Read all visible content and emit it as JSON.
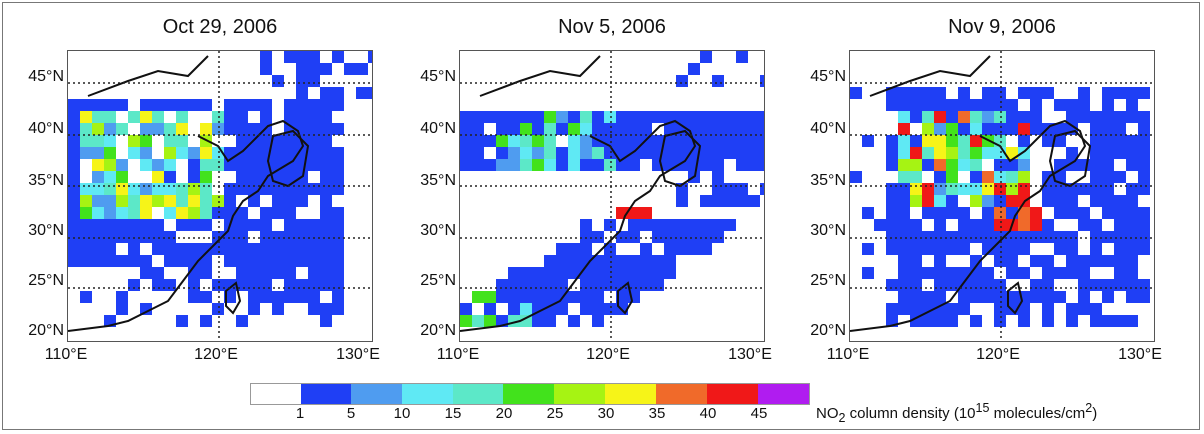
{
  "panels": [
    {
      "title": "Oct 29, 2006"
    },
    {
      "title": "Nov 5, 2006"
    },
    {
      "title": "Nov 9, 2006"
    }
  ],
  "y_labels": [
    "45°N",
    "40°N",
    "35°N",
    "30°N",
    "25°N",
    "20°N"
  ],
  "x_labels": [
    "110°E",
    "120°E",
    "130°E"
  ],
  "legend": {
    "ticks": [
      "1",
      "5",
      "10",
      "15",
      "20",
      "25",
      "30",
      "35",
      "40",
      "45"
    ],
    "caption": "NO2 column density (1015 molecules/cm2)",
    "caption_parts": {
      "pre": "NO",
      "sub": "2",
      "mid": " column density (10",
      "sup": "15",
      "post": " molecules/cm",
      "sup2": "2",
      "end": ")"
    },
    "colors": [
      "#ffffff",
      "#1f3ff5",
      "#4f9cf0",
      "#5fe9f4",
      "#5ce8c8",
      "#42e21c",
      "#a6f313",
      "#f6f418",
      "#f06a2a",
      "#f01818",
      "#b01cf0"
    ]
  }
}
